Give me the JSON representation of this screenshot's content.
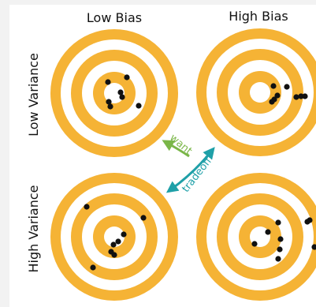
{
  "columns": {
    "low_bias": "Low Bias",
    "high_bias": "High Bias"
  },
  "rows": {
    "low_variance": "Low Variance",
    "high_variance": "High Variance"
  },
  "arrows": {
    "want_label": "want",
    "tradeoff_label": "tradeoff"
  },
  "colors": {
    "ring": "#f5b335",
    "background": "#ffffff",
    "dot": "#111111",
    "want_arrow": "#7ab648",
    "tradeoff_arrow": "#1fa0a8"
  }
}
